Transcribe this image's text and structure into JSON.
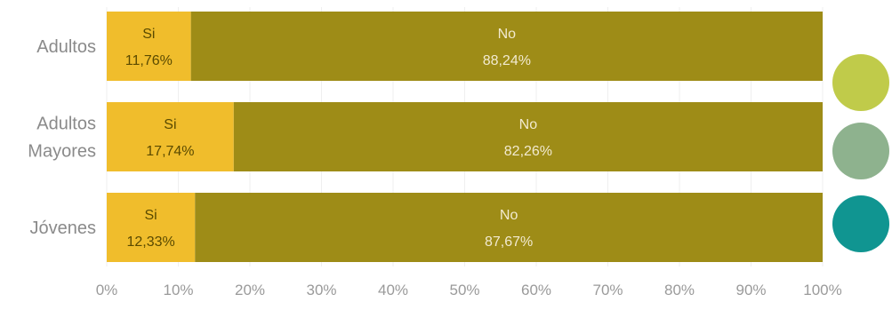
{
  "chart_data": {
    "type": "bar",
    "orientation": "horizontal",
    "stacked": true,
    "categories": [
      "Adultos",
      "Adultos Mayores",
      "Jóvenes"
    ],
    "category_lines": [
      [
        "Adultos"
      ],
      [
        "Adultos",
        "Mayores"
      ],
      [
        "Jóvenes"
      ]
    ],
    "series": [
      {
        "name": "Si",
        "values": [
          11.76,
          17.74,
          12.33
        ],
        "labels": [
          "11,76%",
          "17,74%",
          "12,33%"
        ],
        "color": "#f0bd2c",
        "label_color": "#5a4a00"
      },
      {
        "name": "No",
        "values": [
          88.24,
          82.26,
          87.67
        ],
        "labels": [
          "88,24%",
          "82,26%",
          "87,67%"
        ],
        "color": "#9e8c17",
        "label_color": "#f2ead0"
      }
    ],
    "xlim": [
      0,
      100
    ],
    "xticks": [
      "0%",
      "10%",
      "20%",
      "30%",
      "40%",
      "50%",
      "60%",
      "70%",
      "80%",
      "90%",
      "100%"
    ],
    "grid": true,
    "legend_colors": [
      "#c0cb4a",
      "#8eb28e",
      "#109591"
    ],
    "title": "",
    "xlabel": "",
    "ylabel": ""
  }
}
